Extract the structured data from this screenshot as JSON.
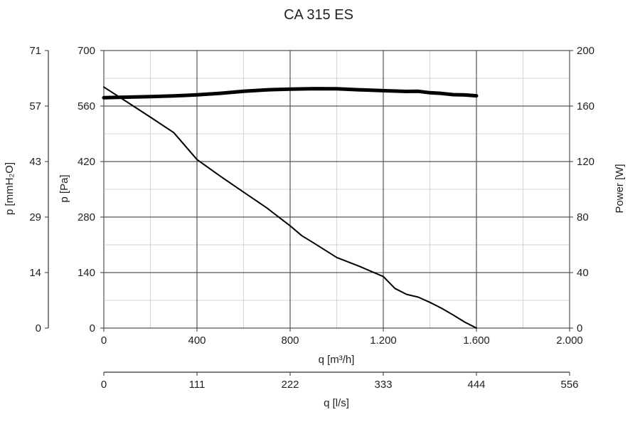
{
  "chart_data": {
    "type": "line",
    "title": "CA 315 ES",
    "x": {
      "label": "q [m³/h]",
      "range": [
        0,
        2000
      ],
      "ticks": [
        0,
        400,
        800,
        1200,
        1600,
        2000
      ],
      "tick_labels": [
        "0",
        "400",
        "800",
        "1.200",
        "1.600",
        "2.000"
      ]
    },
    "x2": {
      "label": "q [l/s]",
      "tick_labels": [
        "0",
        "111",
        "222",
        "333",
        "444",
        "556"
      ]
    },
    "y_left_outer": {
      "label": "p [mmH₂O]",
      "tick_labels": [
        "0",
        "14",
        "29",
        "43",
        "57",
        "71"
      ]
    },
    "y_left": {
      "label": "p [Pa]",
      "range": [
        0,
        700
      ],
      "ticks": [
        0,
        140,
        280,
        420,
        560,
        700
      ],
      "tick_labels": [
        "0",
        "140",
        "280",
        "420",
        "560",
        "700"
      ]
    },
    "y_right": {
      "label": "Power [W]",
      "range": [
        0,
        200
      ],
      "ticks": [
        0,
        40,
        80,
        120,
        160,
        200
      ],
      "tick_labels": [
        "0",
        "40",
        "80",
        "120",
        "160",
        "200"
      ]
    },
    "grid": true,
    "series": [
      {
        "axis": "left",
        "color": "#000000",
        "points": [
          [
            0,
            608
          ],
          [
            100,
            570
          ],
          [
            200,
            532
          ],
          [
            300,
            493
          ],
          [
            400,
            425
          ],
          [
            500,
            383
          ],
          [
            600,
            343
          ],
          [
            700,
            303
          ],
          [
            800,
            258
          ],
          [
            850,
            233
          ],
          [
            900,
            215
          ],
          [
            1000,
            178
          ],
          [
            1100,
            155
          ],
          [
            1200,
            130
          ],
          [
            1250,
            100
          ],
          [
            1300,
            85
          ],
          [
            1350,
            78
          ],
          [
            1400,
            65
          ],
          [
            1450,
            50
          ],
          [
            1500,
            33
          ],
          [
            1550,
            15
          ],
          [
            1600,
            0
          ]
        ]
      },
      {
        "axis": "right",
        "color": "#000000",
        "points": [
          [
            0,
            166
          ],
          [
            100,
            166.4
          ],
          [
            200,
            166.8
          ],
          [
            300,
            167.3
          ],
          [
            400,
            168.1
          ],
          [
            500,
            169.2
          ],
          [
            600,
            170.6
          ],
          [
            700,
            171.7
          ],
          [
            800,
            172.2
          ],
          [
            900,
            172.5
          ],
          [
            1000,
            172.4
          ],
          [
            1100,
            171.7
          ],
          [
            1200,
            171.1
          ],
          [
            1300,
            170.5
          ],
          [
            1350,
            170.6
          ],
          [
            1400,
            169.6
          ],
          [
            1450,
            169.1
          ],
          [
            1500,
            168.2
          ],
          [
            1550,
            168.0
          ],
          [
            1600,
            167.4
          ]
        ]
      }
    ]
  }
}
